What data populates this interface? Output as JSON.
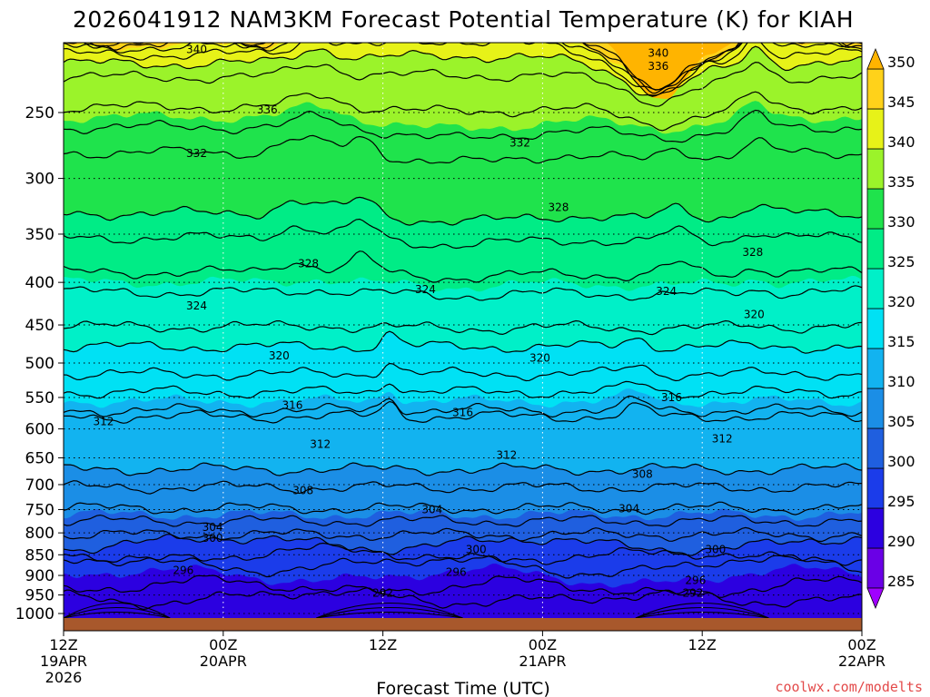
{
  "chart_data": {
    "type": "heatmap",
    "title": "2026041912 NAM3KM Forecast Potential Temperature (K) for KIAH",
    "xlabel": "Forecast Time (UTC)",
    "ylabel": "",
    "credit": "coolwx.com/modelts",
    "x_ticks": [
      {
        "line1": "12Z",
        "line2": "19APR",
        "line3": "2026"
      },
      {
        "line1": "00Z",
        "line2": "20APR",
        "line3": ""
      },
      {
        "line1": "12Z",
        "line2": "",
        "line3": ""
      },
      {
        "line1": "00Z",
        "line2": "21APR",
        "line3": ""
      },
      {
        "line1": "12Z",
        "line2": "",
        "line3": ""
      },
      {
        "line1": "00Z",
        "line2": "22APR",
        "line3": ""
      }
    ],
    "x_hours": [
      0,
      12,
      24,
      36,
      48,
      60
    ],
    "x_range": [
      0,
      60
    ],
    "y_ticks": [
      250,
      300,
      350,
      400,
      450,
      500,
      550,
      600,
      650,
      700,
      750,
      800,
      850,
      900,
      950,
      1000
    ],
    "y_range_hPa": [
      200,
      1010
    ],
    "y_scale": "log",
    "colorbar": {
      "levels": [
        285,
        290,
        295,
        300,
        305,
        310,
        315,
        320,
        325,
        330,
        335,
        340,
        345,
        350
      ],
      "labels": [
        "285",
        "290",
        "295",
        "300",
        "305",
        "310",
        "315",
        "320",
        "325",
        "330",
        "335",
        "340",
        "345",
        "350"
      ],
      "colors": [
        "#a000ff",
        "#6a00e6",
        "#2c00e0",
        "#1b3cea",
        "#1f5fdf",
        "#1b8ee6",
        "#12b3f0",
        "#00e1f4",
        "#00f0c8",
        "#00ec86",
        "#1fe34c",
        "#9bf32a",
        "#e7f218",
        "#ffd21a",
        "#ffb400"
      ]
    },
    "contour_levels": [
      292,
      296,
      300,
      304,
      308,
      312,
      316,
      320,
      324,
      328,
      332,
      336,
      340
    ],
    "contour_labels": [
      {
        "text": "340",
        "hour": 10.0,
        "hPa": 210
      },
      {
        "text": "340",
        "hour": 44.7,
        "hPa": 212
      },
      {
        "text": "336",
        "hour": 44.7,
        "hPa": 220
      },
      {
        "text": "336",
        "hour": 15.3,
        "hPa": 248
      },
      {
        "text": "332",
        "hour": 10.0,
        "hPa": 280
      },
      {
        "text": "332",
        "hour": 34.3,
        "hPa": 272
      },
      {
        "text": "328",
        "hour": 37.2,
        "hPa": 325
      },
      {
        "text": "328",
        "hour": 18.4,
        "hPa": 380
      },
      {
        "text": "328",
        "hour": 51.8,
        "hPa": 368
      },
      {
        "text": "324",
        "hour": 10.0,
        "hPa": 427
      },
      {
        "text": "324",
        "hour": 27.2,
        "hPa": 408
      },
      {
        "text": "324",
        "hour": 45.3,
        "hPa": 410
      },
      {
        "text": "320",
        "hour": 16.2,
        "hPa": 490
      },
      {
        "text": "320",
        "hour": 35.8,
        "hPa": 493
      },
      {
        "text": "320",
        "hour": 51.9,
        "hPa": 437
      },
      {
        "text": "316",
        "hour": 17.2,
        "hPa": 562
      },
      {
        "text": "316",
        "hour": 30.0,
        "hPa": 573
      },
      {
        "text": "316",
        "hour": 45.7,
        "hPa": 550
      },
      {
        "text": "312",
        "hour": 3.0,
        "hPa": 588
      },
      {
        "text": "312",
        "hour": 19.3,
        "hPa": 626
      },
      {
        "text": "312",
        "hour": 33.3,
        "hPa": 645
      },
      {
        "text": "312",
        "hour": 49.5,
        "hPa": 617
      },
      {
        "text": "308",
        "hour": 18.0,
        "hPa": 712
      },
      {
        "text": "308",
        "hour": 43.5,
        "hPa": 680
      },
      {
        "text": "304",
        "hour": 27.7,
        "hPa": 750
      },
      {
        "text": "304",
        "hour": 42.5,
        "hPa": 748
      },
      {
        "text": "304",
        "hour": 11.2,
        "hPa": 788
      },
      {
        "text": "300",
        "hour": 11.2,
        "hPa": 812
      },
      {
        "text": "300",
        "hour": 31.0,
        "hPa": 838
      },
      {
        "text": "300",
        "hour": 49.0,
        "hPa": 838
      },
      {
        "text": "296",
        "hour": 9.0,
        "hPa": 888
      },
      {
        "text": "296",
        "hour": 29.5,
        "hPa": 892
      },
      {
        "text": "296",
        "hour": 47.5,
        "hPa": 912
      },
      {
        "text": "292",
        "hour": 24.0,
        "hPa": 945
      },
      {
        "text": "292",
        "hour": 47.3,
        "hPa": 945
      }
    ]
  }
}
